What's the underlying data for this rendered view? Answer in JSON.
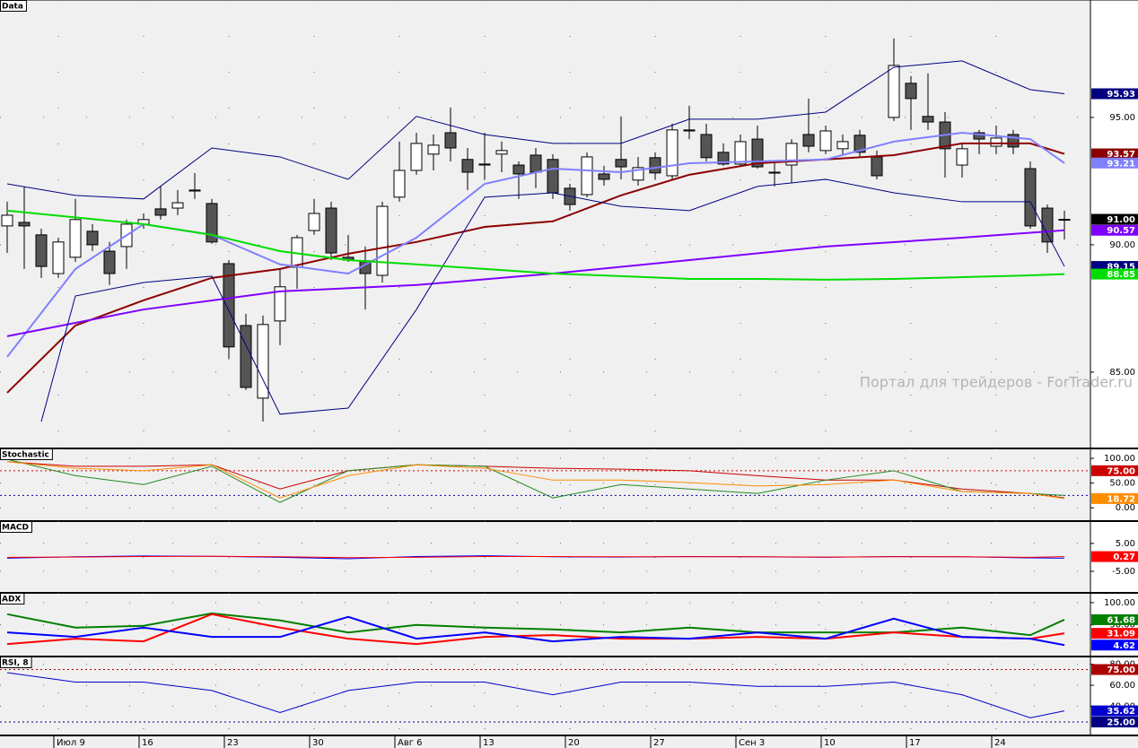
{
  "chart_data": [
    {
      "type": "candlestick",
      "title": "Data",
      "annotation": "Портал для трейдеров - ForTrader.ru",
      "categories": [
        null,
        null,
        null,
        "Июл 9",
        null,
        null,
        null,
        null,
        "16",
        null,
        null,
        null,
        null,
        "23",
        null,
        null,
        null,
        null,
        "30",
        null,
        null,
        null,
        null,
        "Авг 6",
        null,
        null,
        null,
        null,
        "13",
        null,
        null,
        null,
        null,
        "20",
        null,
        null,
        null,
        null,
        "27",
        null,
        null,
        null,
        null,
        "Сен 3",
        null,
        null,
        null,
        null,
        "10",
        null,
        null,
        null,
        null,
        "17",
        null,
        null,
        null,
        null,
        "24",
        null,
        null,
        null,
        null
      ],
      "open": [
        90.74,
        90.88,
        90.39,
        88.87,
        89.51,
        90.53,
        89.75,
        89.93,
        90.81,
        91.41,
        91.44,
        92.15,
        91.62,
        89.26,
        86.83,
        83.98,
        87.01,
        89.12,
        90.56,
        91.44,
        89.51,
        89.37,
        88.8,
        91.87,
        92.92,
        93.56,
        94.4,
        93.35,
        93.17,
        93.56,
        93.13,
        93.52,
        93.35,
        92.22,
        91.97,
        92.78,
        93.35,
        92.54,
        93.42,
        92.71,
        94.51,
        94.33,
        93.63,
        93.17,
        94.15,
        92.85,
        93.13,
        94.33,
        93.7,
        93.77,
        94.3,
        93.45,
        95.0,
        96.34,
        95.04,
        94.82,
        93.13,
        94.4,
        93.87,
        94.33,
        92.99,
        91.44,
        90.99
      ],
      "high": [
        91.69,
        92.29,
        90.63,
        90.28,
        91.8,
        90.81,
        90.11,
        90.99,
        91.23,
        92.29,
        92.15,
        92.82,
        91.8,
        89.4,
        87.29,
        87.22,
        89.05,
        90.39,
        91.8,
        91.69,
        90.39,
        89.93,
        91.69,
        94.05,
        94.4,
        94.33,
        95.39,
        93.8,
        94.4,
        94.05,
        93.27,
        93.8,
        93.56,
        92.39,
        93.63,
        93.1,
        95.04,
        93.45,
        93.63,
        94.75,
        95.46,
        94.75,
        93.98,
        94.33,
        94.68,
        93.27,
        94.15,
        95.74,
        94.68,
        94.33,
        94.51,
        93.7,
        98.1,
        96.62,
        96.73,
        95.21,
        93.98,
        94.51,
        94.68,
        94.51,
        93.27,
        91.58,
        91.34
      ],
      "low": [
        89.68,
        89.05,
        88.7,
        88.7,
        89.33,
        89.75,
        88.42,
        89.05,
        90.63,
        90.99,
        91.16,
        91.8,
        90.04,
        85.53,
        84.3,
        83.06,
        86.06,
        88.27,
        90.39,
        89.4,
        89.33,
        87.46,
        88.52,
        91.69,
        92.75,
        92.92,
        93.27,
        92.15,
        92.57,
        92.85,
        91.8,
        92.22,
        91.8,
        91.34,
        91.87,
        92.32,
        92.57,
        92.32,
        92.57,
        92.57,
        94.15,
        93.27,
        93.1,
        93.1,
        92.99,
        92.29,
        92.43,
        93.63,
        93.56,
        93.56,
        93.45,
        92.57,
        94.86,
        94.51,
        94.51,
        92.64,
        92.64,
        93.56,
        93.56,
        93.56,
        90.63,
        89.68,
        90.21
      ],
      "close": [
        91.16,
        90.74,
        89.15,
        90.11,
        90.99,
        90.0,
        88.87,
        90.81,
        90.99,
        91.16,
        91.65,
        92.11,
        90.11,
        85.99,
        84.4,
        86.87,
        88.35,
        90.28,
        91.23,
        89.68,
        89.4,
        88.87,
        91.51,
        92.92,
        93.98,
        93.91,
        93.8,
        92.85,
        93.13,
        93.7,
        92.78,
        92.85,
        92.04,
        91.58,
        93.45,
        92.57,
        93.06,
        93.03,
        92.82,
        94.51,
        94.47,
        93.42,
        93.17,
        94.05,
        93.06,
        92.82,
        93.98,
        93.87,
        94.47,
        94.05,
        93.63,
        92.71,
        97.04,
        95.74,
        94.82,
        93.77,
        93.77,
        94.15,
        94.19,
        93.84,
        90.74,
        90.11,
        91.0
      ],
      "up_color": "#ffffff",
      "down_color": "#555555",
      "last_label": "91.00",
      "ylim": [
        82.04,
        99.61
      ],
      "yticks": [
        {
          "value": 95,
          "label": "95.00"
        },
        {
          "value": 90,
          "label": "90.00"
        },
        {
          "value": 85,
          "label": "85.00"
        }
      ],
      "grid": true,
      "series": [
        {
          "color": "#000080",
          "width": 1,
          "tag": "95.93",
          "x": [
            0,
            4,
            8,
            12,
            16,
            20,
            24,
            28,
            32,
            36,
            40,
            44,
            48,
            52,
            56,
            60,
            62
          ],
          "values": [
            92.39,
            91.94,
            91.8,
            93.8,
            93.45,
            92.57,
            95.04,
            94.33,
            93.98,
            93.98,
            94.93,
            94.93,
            95.21,
            96.97,
            97.22,
            96.09,
            95.93
          ]
        },
        {
          "color": "#8b0000",
          "width": 2,
          "tag": "93.57",
          "x": [
            0,
            4,
            8,
            12,
            16,
            20,
            24,
            28,
            32,
            36,
            40,
            44,
            48,
            52,
            56,
            60,
            62
          ],
          "values": [
            84.19,
            86.83,
            87.82,
            88.7,
            89.05,
            89.65,
            90.11,
            90.7,
            90.92,
            91.94,
            92.75,
            93.2,
            93.35,
            93.52,
            93.98,
            93.98,
            93.57
          ]
        },
        {
          "color": "#8080ff",
          "width": 2,
          "tag": "93.21",
          "x": [
            0,
            4,
            8,
            12,
            16,
            20,
            24,
            28,
            32,
            36,
            40,
            44,
            48,
            52,
            56,
            60,
            62
          ],
          "values": [
            85.6,
            89.05,
            90.81,
            90.39,
            89.23,
            88.87,
            90.28,
            92.39,
            92.99,
            92.85,
            93.2,
            93.27,
            93.35,
            94.05,
            94.4,
            94.15,
            93.21
          ]
        },
        {
          "color": "#7f00ff",
          "width": 2,
          "tag": "90.57",
          "x": [
            0,
            8,
            16,
            24,
            32,
            40,
            48,
            56,
            62
          ],
          "values": [
            86.41,
            87.46,
            88.17,
            88.42,
            88.87,
            89.4,
            89.93,
            90.28,
            90.57
          ]
        },
        {
          "color": "#000080",
          "width": 1,
          "tag": "89.15",
          "x": [
            2,
            4,
            8,
            12,
            16,
            20,
            24,
            28,
            32,
            36,
            40,
            44,
            48,
            52,
            56,
            60,
            62
          ],
          "values": [
            83.06,
            87.99,
            88.52,
            88.77,
            83.35,
            83.59,
            87.46,
            91.87,
            92.04,
            91.51,
            91.34,
            92.29,
            92.57,
            92.04,
            91.69,
            91.69,
            89.15
          ]
        },
        {
          "color": "#00dd00",
          "width": 2,
          "tag": "88.85",
          "x": [
            0,
            8,
            12,
            16,
            20,
            24,
            28,
            32,
            36,
            40,
            44,
            48,
            52,
            56,
            60,
            62
          ],
          "values": [
            91.34,
            90.81,
            90.39,
            89.75,
            89.4,
            89.23,
            89.05,
            88.87,
            88.77,
            88.66,
            88.66,
            88.63,
            88.66,
            88.73,
            88.8,
            88.85
          ]
        }
      ]
    },
    {
      "type": "line",
      "title": "Stochastic",
      "ylim": [
        -25,
        120
      ],
      "yticks": [
        {
          "value": 100,
          "label": "100.00"
        },
        {
          "value": 50,
          "label": "50.00"
        },
        {
          "value": 0,
          "label": "0.00"
        }
      ],
      "levels": [
        {
          "value": 75,
          "label": "75.00",
          "color": "#cc0000"
        },
        {
          "value": 25,
          "color": "#0000aa"
        }
      ],
      "series": [
        {
          "color": "#cc0000",
          "width": 1,
          "x": [
            0,
            4,
            8,
            12,
            16,
            20,
            24,
            28,
            32,
            36,
            40,
            44,
            48,
            52,
            56,
            60,
            62
          ],
          "values": [
            93,
            84,
            84,
            87,
            38,
            75,
            87,
            84,
            80,
            78,
            75,
            65,
            56,
            56,
            38,
            29,
            20
          ]
        },
        {
          "color": "#228b22",
          "width": 1,
          "x": [
            0,
            4,
            8,
            12,
            16,
            20,
            24,
            28,
            32,
            36,
            40,
            44,
            48,
            52,
            56,
            60,
            62
          ],
          "values": [
            98,
            65,
            47,
            84,
            11,
            75,
            87,
            84,
            20,
            47,
            38,
            29,
            56,
            75,
            33,
            29,
            25
          ]
        },
        {
          "color": "#ff8c00",
          "width": 1,
          "tag": "18.72",
          "x": [
            0,
            4,
            8,
            12,
            16,
            20,
            24,
            28,
            32,
            36,
            40,
            44,
            48,
            52,
            56,
            60,
            62
          ],
          "values": [
            93,
            80,
            75,
            87,
            20,
            65,
            87,
            80,
            56,
            56,
            51,
            44,
            47,
            56,
            33,
            29,
            18.72
          ]
        }
      ]
    },
    {
      "type": "line",
      "title": "MACD",
      "ylim": [
        -12.4,
        13
      ],
      "yticks": [
        {
          "value": 5,
          "label": "5.00"
        },
        {
          "value": -5,
          "label": "-5.00"
        }
      ],
      "series": [
        {
          "color": "#0000ff",
          "width": 1,
          "x": [
            0,
            4,
            8,
            12,
            16,
            20,
            24,
            28,
            32,
            36,
            40,
            44,
            48,
            52,
            56,
            60,
            62
          ],
          "values": [
            -0.3,
            0.2,
            0.5,
            0.4,
            0,
            -0.5,
            0.3,
            0.6,
            0.2,
            0.1,
            0.3,
            0.2,
            0,
            0.3,
            0.2,
            -0.2,
            -0.3
          ]
        },
        {
          "color": "#ff0000",
          "width": 1,
          "tag": "0.27",
          "x": [
            0,
            4,
            8,
            12,
            16,
            20,
            24,
            28,
            32,
            36,
            40,
            44,
            48,
            52,
            56,
            60,
            62
          ],
          "values": [
            0,
            0.1,
            0.3,
            0.4,
            0.2,
            -0.1,
            0,
            0.3,
            0.3,
            0.2,
            0.2,
            0.2,
            0.1,
            0.2,
            0.2,
            0,
            0.27
          ]
        }
      ]
    },
    {
      "type": "line",
      "title": "ADX",
      "ylim": [
        -19,
        122
      ],
      "yticks": [
        {
          "value": 100,
          "label": "100.00"
        },
        {
          "value": 50,
          "label": "50.00"
        }
      ],
      "series": [
        {
          "color": "#008000",
          "width": 2,
          "tag": "61.68",
          "x": [
            0,
            4,
            8,
            12,
            16,
            20,
            24,
            28,
            32,
            36,
            40,
            44,
            48,
            52,
            56,
            60,
            62
          ],
          "values": [
            74,
            44,
            48,
            76,
            60,
            33,
            50,
            44,
            40,
            33,
            44,
            33,
            33,
            33,
            44,
            27,
            61.68
          ]
        },
        {
          "color": "#ff0000",
          "width": 2,
          "tag": "31.09",
          "x": [
            0,
            4,
            8,
            12,
            16,
            20,
            24,
            28,
            32,
            36,
            40,
            44,
            48,
            52,
            56,
            60,
            62
          ],
          "values": [
            7,
            19,
            13,
            74,
            44,
            19,
            7,
            23,
            27,
            19,
            19,
            23,
            19,
            33,
            23,
            19,
            31.09
          ]
        },
        {
          "color": "#0000ff",
          "width": 2,
          "tag": "4.62",
          "x": [
            0,
            4,
            8,
            12,
            16,
            20,
            24,
            28,
            32,
            36,
            40,
            44,
            48,
            52,
            56,
            60,
            62
          ],
          "values": [
            33,
            23,
            44,
            23,
            23,
            68,
            19,
            33,
            13,
            23,
            19,
            33,
            19,
            64,
            23,
            19,
            4.62
          ]
        }
      ]
    },
    {
      "type": "line",
      "title": "RSI, 8",
      "ylim": [
        12.2,
        87.4
      ],
      "yticks": [
        {
          "value": 80,
          "label": "80.00"
        },
        {
          "value": 60,
          "label": "60.00"
        },
        {
          "value": 40,
          "label": "40.00"
        }
      ],
      "levels": [
        {
          "value": 75,
          "label": "75.00",
          "color": "#aa0000"
        },
        {
          "value": 25,
          "label": "25.00",
          "color": "#000080"
        }
      ],
      "series": [
        {
          "color": "#0000cc",
          "width": 1,
          "tag": "35.62",
          "x": [
            0,
            4,
            8,
            12,
            16,
            20,
            24,
            28,
            32,
            36,
            40,
            44,
            48,
            52,
            56,
            60,
            62
          ],
          "values": [
            72,
            63,
            63,
            55,
            34,
            55,
            63,
            63,
            51,
            63,
            63,
            59,
            59,
            63,
            51,
            29,
            35.62
          ]
        }
      ]
    }
  ]
}
